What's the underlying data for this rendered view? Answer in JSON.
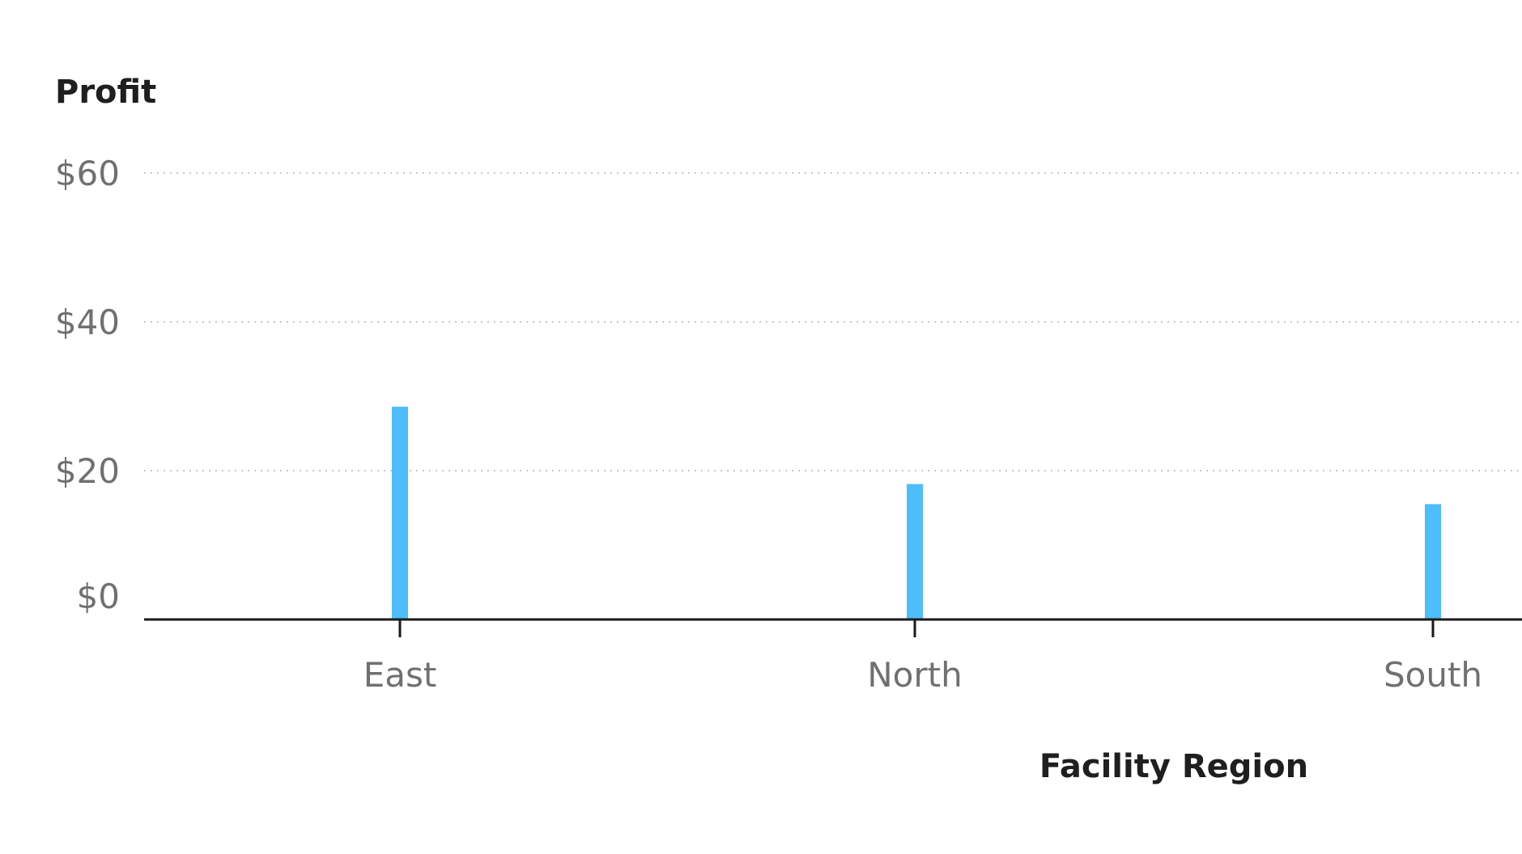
{
  "chart_data": {
    "type": "bar",
    "ylabel": "Profit",
    "xlabel": "Facility Region",
    "categories": [
      "East",
      "North",
      "South"
    ],
    "series": [
      {
        "values": [
          28.6,
          18.2,
          15.5
        ]
      }
    ],
    "ylim": [
      0,
      60
    ],
    "yticks": [
      {
        "value": 0,
        "label": "$0"
      },
      {
        "value": 20,
        "label": "$20"
      },
      {
        "value": 40,
        "label": "$40"
      },
      {
        "value": 60,
        "label": "$60"
      }
    ],
    "grid": true,
    "bar_color": "#4dbdfc"
  }
}
